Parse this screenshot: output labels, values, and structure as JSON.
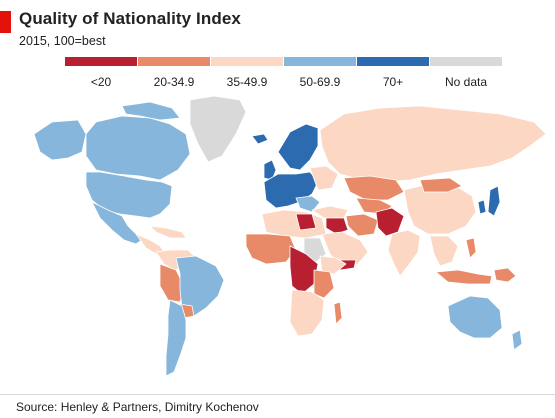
{
  "header": {
    "title": "Quality of Nationality Index",
    "subtitle": "2015, 100=best",
    "accent_color": "#e3120b"
  },
  "legend": {
    "items": [
      {
        "label": "<20",
        "color": "#b81f31"
      },
      {
        "label": "20-34.9",
        "color": "#e88a67"
      },
      {
        "label": "35-49.9",
        "color": "#fbd7c4"
      },
      {
        "label": "50-69.9",
        "color": "#86b6db"
      },
      {
        "label": "70+",
        "color": "#2d6bb0"
      },
      {
        "label": "No data",
        "color": "#d9d9d9"
      }
    ]
  },
  "map": {
    "ocean_color": "#ffffff",
    "border_color": "#ffffff"
  },
  "footer": {
    "source": "Source: Henley & Partners, Dimitry Kochenov"
  }
}
